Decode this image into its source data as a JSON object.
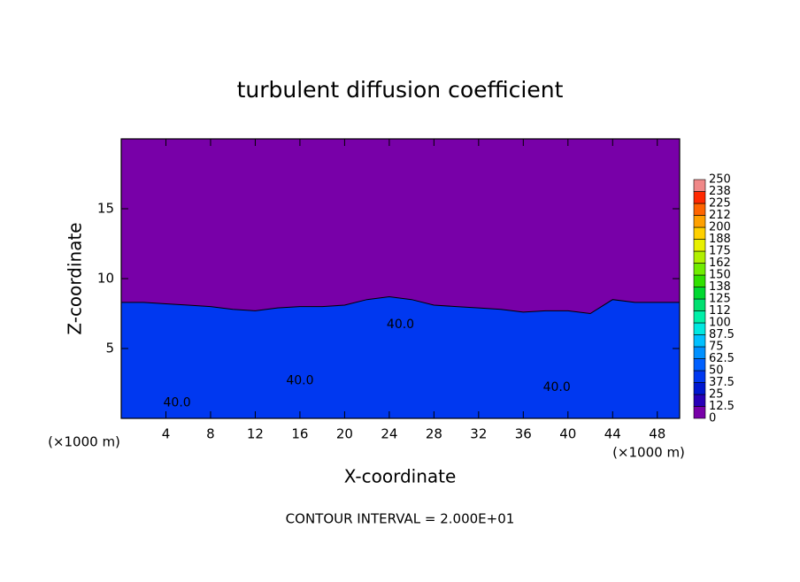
{
  "chart_data": {
    "type": "contour",
    "title": "turbulent diffusion coefficient",
    "x_label": "X-coordinate",
    "y_label": "Z-coordinate",
    "x_unit": "(×1000 m)",
    "y_unit": "(×1000 m)",
    "footnote": "CONTOUR INTERVAL = 2.000E+01",
    "xlim": [
      0,
      50
    ],
    "xticks": [
      4,
      8,
      12,
      16,
      20,
      24,
      28,
      32,
      36,
      40,
      44,
      48
    ],
    "ylim": [
      0,
      20
    ],
    "yticks": [
      5,
      10,
      15
    ],
    "layer": {
      "value": 45,
      "x": [
        0,
        2,
        4,
        6,
        8,
        10,
        12,
        14,
        16,
        18,
        20,
        22,
        24,
        26,
        28,
        30,
        32,
        34,
        36,
        38,
        40,
        42,
        44,
        46,
        48,
        50
      ],
      "top": [
        8.3,
        8.3,
        8.2,
        8.1,
        8.0,
        7.8,
        7.7,
        7.9,
        8.0,
        8.0,
        8.1,
        8.5,
        8.7,
        8.5,
        8.1,
        8.0,
        7.9,
        7.8,
        7.6,
        7.7,
        7.7,
        7.5,
        8.5,
        8.3,
        8.3,
        8.3
      ]
    },
    "contour_labels": [
      {
        "x": 5,
        "z": 1.1,
        "text": "40.0"
      },
      {
        "x": 16,
        "z": 2.7,
        "text": "40.0"
      },
      {
        "x": 25,
        "z": 6.7,
        "text": "40.0"
      },
      {
        "x": 39,
        "z": 2.2,
        "text": "40.0"
      }
    ],
    "colorbar": {
      "levels": [
        0,
        12.5,
        25,
        37.5,
        50,
        62.5,
        75,
        87.5,
        100,
        112,
        125,
        138,
        150,
        162,
        175,
        188,
        200,
        212,
        225,
        238,
        250
      ],
      "colors": [
        "#7800a8",
        "#2800b8",
        "#0018d0",
        "#0038f0",
        "#0060ff",
        "#0090ff",
        "#00c0ff",
        "#00e8e0",
        "#00f0a8",
        "#00e070",
        "#00d830",
        "#30e000",
        "#70ec00",
        "#b0f000",
        "#e8f000",
        "#ffd000",
        "#ffa000",
        "#ff6400",
        "#ff2800",
        "#f08888"
      ]
    }
  }
}
